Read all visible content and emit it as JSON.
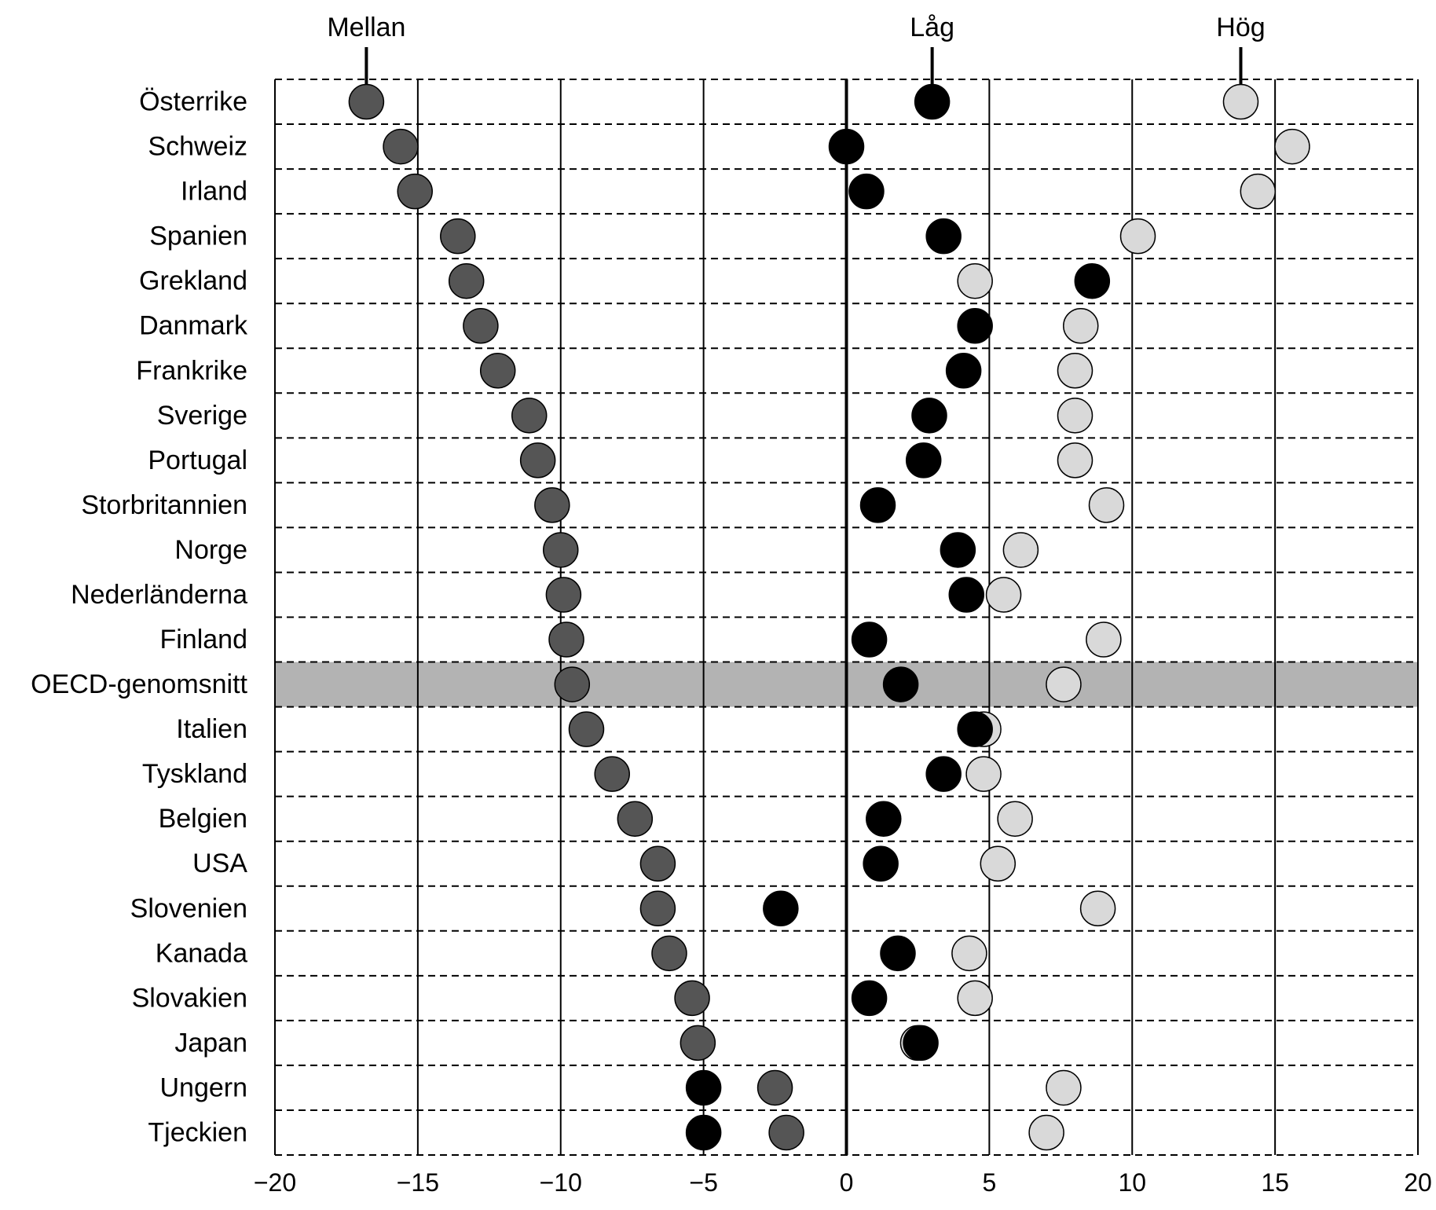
{
  "chart_data": {
    "type": "scatter",
    "title": "",
    "xlabel": "",
    "ylabel": "",
    "xlim": [
      -20,
      20
    ],
    "xticks": [
      -20,
      -15,
      -10,
      -5,
      0,
      5,
      10,
      15,
      20
    ],
    "xtick_labels": [
      "−20",
      "−15",
      "−10",
      "−5",
      "0",
      "5",
      "10",
      "15",
      "20"
    ],
    "highlight_category": "OECD-genomsnitt",
    "categories": [
      "Österrike",
      "Schweiz",
      "Irland",
      "Spanien",
      "Grekland",
      "Danmark",
      "Frankrike",
      "Sverige",
      "Portugal",
      "Storbritannien",
      "Norge",
      "Nederländerna",
      "Finland",
      "OECD-genomsnitt",
      "Italien",
      "Tyskland",
      "Belgien",
      "USA",
      "Slovenien",
      "Kanada",
      "Slovakien",
      "Japan",
      "Ungern",
      "Tjeckien"
    ],
    "series": [
      {
        "name": "Mellan",
        "color": "#555555",
        "values": [
          -16.8,
          -15.6,
          -15.1,
          -13.6,
          -13.3,
          -12.8,
          -12.2,
          -11.1,
          -10.8,
          -10.3,
          -10.0,
          -9.9,
          -9.8,
          -9.6,
          -9.1,
          -8.2,
          -7.4,
          -6.6,
          -6.6,
          -6.2,
          -5.4,
          -5.2,
          -2.5,
          -2.1
        ]
      },
      {
        "name": "Låg",
        "color": "#000000",
        "values": [
          3.0,
          0.0,
          0.7,
          3.4,
          8.6,
          4.5,
          4.1,
          2.9,
          2.7,
          1.1,
          3.9,
          4.2,
          0.8,
          1.9,
          4.5,
          3.4,
          1.3,
          1.2,
          -2.3,
          1.8,
          0.8,
          2.6,
          -5.0,
          -5.0
        ]
      },
      {
        "name": "Hög",
        "color": "#d9d9d9",
        "values": [
          13.8,
          15.6,
          14.4,
          10.2,
          4.5,
          8.2,
          8.0,
          8.0,
          8.0,
          9.1,
          6.1,
          5.5,
          9.0,
          7.6,
          4.8,
          4.8,
          5.9,
          5.3,
          8.8,
          4.3,
          4.5,
          2.5,
          7.6,
          7.0
        ]
      }
    ],
    "series_label_anchor_index": 0
  }
}
